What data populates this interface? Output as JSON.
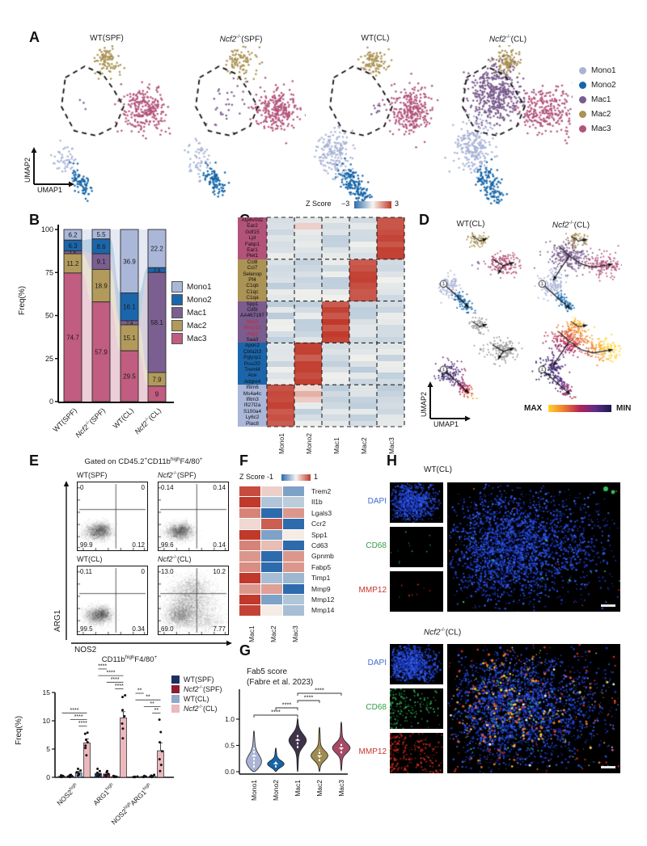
{
  "panels": {
    "A": "A",
    "B": "B",
    "C": "C",
    "D": "D",
    "E": "E",
    "F": "F",
    "G": "G",
    "H": "H"
  },
  "colors": {
    "clusters": {
      "Mono1": "#a9b3d6",
      "Mono2": "#1565a8",
      "Mac1": "#7a5c8e",
      "Mac2": "#ab9355",
      "Mac3": "#b3537a"
    },
    "bar_clusters": {
      "Mono1": "#aab7d9",
      "Mono2": "#1b66aa",
      "Mac1": "#7c5f91",
      "Mac2": "#b29a5c",
      "Mac3": "#c05d80"
    },
    "groups": {
      "WT(SPF)": "#1c2f5e",
      "Ncf2(SPF)": "#8e1e2e",
      "WT(CL)": "#8fa8d0",
      "Ncf2(CL)": "#eab8bd"
    },
    "channels": {
      "DAPI": "#4169d0",
      "CD68": "#2f9e49",
      "MMP12": "#c7342c"
    },
    "gene_highlight": "#d6232a"
  },
  "panelA": {
    "conditions": [
      "WT(SPF)",
      "*Ncf2*^-/-^(SPF)",
      "WT(CL)",
      "*Ncf2*^-/-^(CL)"
    ],
    "legend": [
      {
        "name": "Mono1",
        "color": "#a9b3d6"
      },
      {
        "name": "Mono2",
        "color": "#1565a8"
      },
      {
        "name": "Mac1",
        "color": "#7a5c8e"
      },
      {
        "name": "Mac2",
        "color": "#ab9355"
      },
      {
        "name": "Mac3",
        "color": "#b3537a"
      }
    ],
    "x_label": "UMAP1",
    "y_label": "UMAP2"
  },
  "panelD": {
    "conditions": [
      "WT(CL)",
      "*Ncf2*^-/-^(CL)"
    ],
    "x_label": "UMAP1",
    "y_label": "UMAP2",
    "scale_max_label": "MAX",
    "scale_min_label": "MIN",
    "start_node": "1"
  },
  "panelH": {
    "blocks": [
      {
        "title": "WT(CL)",
        "channels": [
          "DAPI",
          "CD68",
          "MMP12"
        ],
        "staining": "sparse"
      },
      {
        "title": "*Ncf2*^-/-^(CL)",
        "channels": [
          "DAPI",
          "CD68",
          "MMP12"
        ],
        "staining": "dense"
      }
    ]
  },
  "chart_data": [
    {
      "id": "B",
      "type": "bar",
      "stacked": true,
      "title": "",
      "ylabel": "Freq(%)",
      "ylim": [
        0,
        100
      ],
      "yticks": [
        0,
        25,
        50,
        75,
        100
      ],
      "categories": [
        "WT(SPF)",
        "*Ncf2*^-/-^(SPF)",
        "WT(CL)",
        "*Ncf2*^-/-^(CL)"
      ],
      "series": [
        {
          "name": "Mono1",
          "color": "#aab7d9",
          "values": [
            6.2,
            5.5,
            36.9,
            22.2
          ],
          "labels": [
            "6.2",
            "5.5",
            "36.9",
            "22.2"
          ]
        },
        {
          "name": "Mono2",
          "color": "#1b66aa",
          "values": [
            6.3,
            8.6,
            16.1,
            2.8
          ],
          "labels": [
            "6.3",
            "8.6",
            "16.1",
            "2.8"
          ]
        },
        {
          "name": "Mac1",
          "color": "#7c5f91",
          "values": [
            1.6,
            9.1,
            2.4,
            58.1
          ],
          "labels": [
            "1.6",
            "9.1",
            "2.4",
            "58.1"
          ]
        },
        {
          "name": "Mac2",
          "color": "#b29a5c",
          "values": [
            11.2,
            18.9,
            15.1,
            7.9
          ],
          "labels": [
            "11.2",
            "18.9",
            "15.1",
            "7.9"
          ]
        },
        {
          "name": "Mac3",
          "color": "#c05d80",
          "values": [
            74.7,
            57.9,
            29.5,
            9
          ],
          "labels": [
            "74.7",
            "57.9",
            "29.5",
            "9"
          ]
        }
      ],
      "legend_position": "right"
    },
    {
      "id": "C",
      "type": "heatmap",
      "title": "Z Score",
      "scale_min_label": "−3",
      "scale_max_label": "3",
      "scale": [
        -3,
        3
      ],
      "columns": [
        "Mono1",
        "Mono2",
        "Mac1",
        "Mac2",
        "Mac3"
      ],
      "blocks": [
        {
          "cluster": "Mac3",
          "strip_color": "#b3537a",
          "high_in": "Mac3",
          "genes": [
            "Atp6v0d2",
            "Ear2",
            "Gdf15",
            "Lpl",
            "Fabp1",
            "Ear1",
            "Plet1"
          ]
        },
        {
          "cluster": "Mac2",
          "strip_color": "#ab9355",
          "high_in": "Mac2",
          "genes": [
            "Ccl8",
            "Ccl7",
            "Selenop",
            "Pf4",
            "C1qb",
            "C1qc",
            "C1qa"
          ]
        },
        {
          "cluster": "Mac1",
          "strip_color": "#7a5c8e",
          "high_in": "Mac1",
          "genes": [
            "Spp1",
            "Cd5l",
            "AA467197",
            "Nos2",
            "Mmp12",
            "Arg1",
            "Saa3"
          ]
        },
        {
          "cluster": "Mono2",
          "strip_color": "#1b66aa",
          "high_in": "Mono2",
          "genes": [
            "Apoc2",
            "Cbfa2t3",
            "Pglyrp1",
            "Pou2f2",
            "Treml4",
            "Ace",
            "Adgre4"
          ]
        },
        {
          "cluster": "Mono1",
          "strip_color": "#aab7d9",
          "high_in": "Mono1",
          "genes": [
            "Ifitm6",
            "Ms4a4c",
            "Ifitm3",
            "Ifi27l2a",
            "S100a4",
            "Ly6c2",
            "Plac8"
          ]
        }
      ],
      "red_genes": [
        "Nos2",
        "Mmp12",
        "Arg1"
      ]
    },
    {
      "id": "E_flow",
      "type": "flow-density",
      "gate_title": "Gated on CD45.2^+^CD11b^high^F4/80^+^",
      "x_label": "NOS2",
      "y_label": "ARG1",
      "plots": [
        {
          "title": "WT(SPF)",
          "UL": "0",
          "UR": "0",
          "LL": "99.9",
          "LR": "0.12",
          "density": "compact"
        },
        {
          "title": "*Ncf2*^-/-^(SPF)",
          "UL": "0.14",
          "UR": "0.14",
          "LL": "99.6",
          "LR": "0.14",
          "density": "compact"
        },
        {
          "title": "WT(CL)",
          "UL": "0.11",
          "UR": "0",
          "LL": "99.5",
          "LR": "0.34",
          "density": "compact"
        },
        {
          "title": "*Ncf2*^-/-^(CL)",
          "UL": "13.0",
          "UR": "10.2",
          "LL": "69.0",
          "LR": "7.77",
          "density": "spread"
        }
      ]
    },
    {
      "id": "E_bar",
      "type": "bar",
      "stacked": false,
      "title": "CD11b^high^F4/80^+^",
      "ylabel": "Freq(%)",
      "ylim": [
        0,
        15
      ],
      "yticks": [
        0,
        5,
        10,
        15
      ],
      "categories": [
        "NOS2^high^",
        "ARG1^high^",
        "NOS2^high^ARG1^high^"
      ],
      "series": [
        {
          "name": "WT(SPF)",
          "color": "#1c2f5e",
          "values": [
            0.2,
            0.7,
            0.12
          ],
          "errors": [
            0.08,
            0.2,
            0.05
          ],
          "dots": [
            [
              0.05,
              0.1,
              0.15,
              0.25,
              0.35
            ],
            [
              0.2,
              0.5,
              0.8,
              1.1,
              1.5
            ],
            [
              0.03,
              0.06,
              0.1,
              0.15
            ]
          ]
        },
        {
          "name": "*Ncf2*^-/-^(SPF)",
          "color": "#8e1e2e",
          "values": [
            0.25,
            0.6,
            0.15
          ],
          "errors": [
            0.1,
            0.15,
            0.06
          ],
          "dots": [
            [
              0.05,
              0.15,
              0.25,
              0.35,
              0.45
            ],
            [
              0.2,
              0.4,
              0.6,
              0.9,
              1.1
            ],
            [
              0.05,
              0.1,
              0.15,
              0.25
            ]
          ]
        },
        {
          "name": "WT(CL)",
          "color": "#8fa8d0",
          "values": [
            0.8,
            0.15,
            0.2
          ],
          "errors": [
            0.25,
            0.06,
            0.1
          ],
          "dots": [
            [
              0.3,
              0.5,
              0.7,
              0.9,
              1.2,
              1.5
            ],
            [
              0.05,
              0.1,
              0.15,
              0.25
            ],
            [
              0.05,
              0.12,
              0.2,
              0.3,
              0.45
            ]
          ]
        },
        {
          "name": "*Ncf2*^-/-^(CL)",
          "color": "#eab8bd",
          "values": [
            6.1,
            10.5,
            4.7
          ],
          "errors": [
            0.7,
            1.1,
            1.4
          ],
          "dots": [
            [
              3.9,
              5.2,
              5.6,
              6.2,
              6.6,
              7.7,
              7.9
            ],
            [
              6.9,
              8.6,
              9.5,
              10.8,
              11.9,
              14.2,
              14.5
            ],
            [
              1.1,
              2.2,
              3.2,
              4.6,
              6.2,
              8.0,
              10.2
            ]
          ]
        }
      ],
      "significance": [
        {
          "category": 0,
          "stars": [
            "****",
            "****",
            "****"
          ]
        },
        {
          "category": 1,
          "stars": [
            "****",
            "****",
            "****",
            "****"
          ]
        },
        {
          "category": 2,
          "stars": [
            "**",
            "**",
            "**",
            "**"
          ]
        }
      ]
    },
    {
      "id": "F",
      "type": "heatmap",
      "title": "Z Score",
      "scale_min_label": "-1",
      "scale_max_label": "1",
      "scale": [
        -1,
        1
      ],
      "columns": [
        "Mac1",
        "Mac2",
        "Mac3"
      ],
      "genes": [
        "Trem2",
        "Il1b",
        "Lgals3",
        "Ccr2",
        "Spp1",
        "Cd63",
        "Gpnmb",
        "Fabp5",
        "Timp1",
        "Mmp9",
        "Mmp12",
        "Mmp14"
      ],
      "matrix": [
        [
          0.9,
          0.2,
          -0.6
        ],
        [
          1.0,
          -0.35,
          -0.3
        ],
        [
          0.6,
          -1.0,
          0.5
        ],
        [
          0.15,
          0.8,
          -1.0
        ],
        [
          1.0,
          -0.6,
          0.05
        ],
        [
          0.6,
          0.3,
          -1.0
        ],
        [
          0.5,
          -1.0,
          0.5
        ],
        [
          0.55,
          -1.0,
          0.5
        ],
        [
          1.0,
          -0.4,
          -0.45
        ],
        [
          0.5,
          0.45,
          -1.0
        ],
        [
          1.0,
          -0.6,
          -0.35
        ],
        [
          0.95,
          0.05,
          -0.4
        ]
      ]
    },
    {
      "id": "G",
      "type": "violin",
      "title": "Fab5 score",
      "subtitle": "(Fabre et al. 2023)",
      "ylabel": "",
      "yticks": [
        "0.0",
        "0.5",
        "1.0"
      ],
      "ylim": [
        0,
        1.1
      ],
      "categories": [
        "Mono1",
        "Mono2",
        "Mac1",
        "Mac2",
        "Mac3"
      ],
      "violins": [
        {
          "name": "Mono1",
          "color": "#aab4d4",
          "min": 0,
          "max": 0.78,
          "mode": 0.16,
          "band": 0.2,
          "q1": 0.08,
          "median": 0.3,
          "q3": 0.45
        },
        {
          "name": "Mono2",
          "color": "#1565a8",
          "min": 0,
          "max": 0.45,
          "mode": 0.14,
          "band": 0.09,
          "q1": 0.08,
          "median": 0.15,
          "q3": 0.2
        },
        {
          "name": "Mac1",
          "color": "#3f3349",
          "min": 0,
          "max": 1.02,
          "mode": 0.6,
          "band": 0.17,
          "q1": 0.45,
          "median": 0.6,
          "q3": 0.72
        },
        {
          "name": "Mac2",
          "color": "#a08c50",
          "min": 0,
          "max": 0.85,
          "mode": 0.3,
          "band": 0.13,
          "q1": 0.2,
          "median": 0.3,
          "q3": 0.42
        },
        {
          "name": "Mac3",
          "color": "#a84a66",
          "min": 0.02,
          "max": 0.95,
          "mode": 0.45,
          "band": 0.13,
          "q1": 0.35,
          "median": 0.45,
          "q3": 0.55
        }
      ],
      "significance": [
        {
          "from": "Mono1",
          "to": "Mac1",
          "stars": "****"
        },
        {
          "from": "Mono2",
          "to": "Mac1",
          "stars": "****"
        },
        {
          "from": "Mac1",
          "to": "Mac2",
          "stars": "****"
        },
        {
          "from": "Mac1",
          "to": "Mac3",
          "stars": "****"
        }
      ]
    }
  ]
}
